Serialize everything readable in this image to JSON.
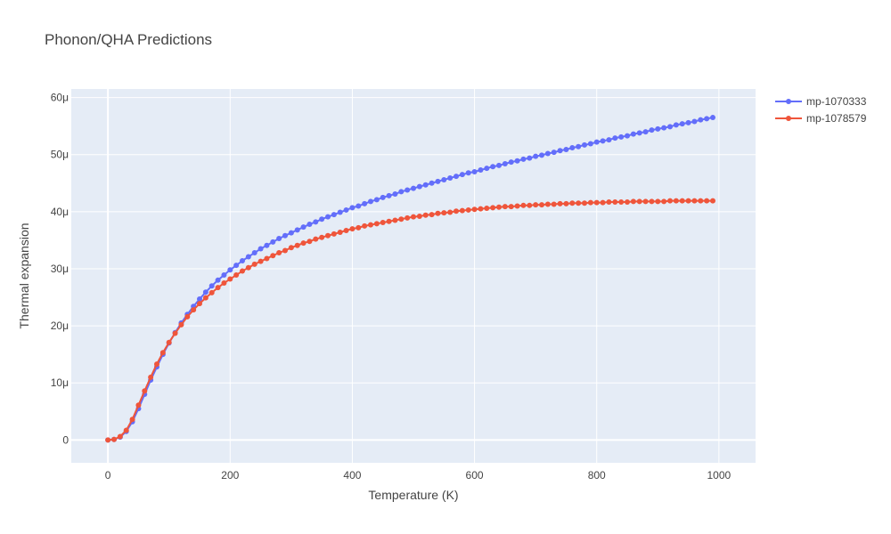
{
  "chart_data": {
    "type": "line",
    "title": "Phonon/QHA Predictions",
    "xlabel": "Temperature (K)",
    "ylabel": "Thermal expansion",
    "xlim": [
      -60,
      1060
    ],
    "ylim": [
      -4,
      61.5
    ],
    "x_ticks": [
      0,
      200,
      400,
      600,
      800,
      1000
    ],
    "x_tick_labels": [
      "0",
      "200",
      "400",
      "600",
      "800",
      "1000"
    ],
    "y_ticks": [
      0,
      10,
      20,
      30,
      40,
      50,
      60
    ],
    "y_tick_labels": [
      "0",
      "10μ",
      "20μ",
      "30μ",
      "40μ",
      "50μ",
      "60μ"
    ],
    "y_unit": "μ",
    "grid": true,
    "legend_position": "top-right",
    "x": [
      0,
      10,
      20,
      30,
      40,
      50,
      60,
      70,
      80,
      90,
      100,
      110,
      120,
      130,
      140,
      150,
      160,
      170,
      180,
      190,
      200,
      210,
      220,
      230,
      240,
      250,
      260,
      270,
      280,
      290,
      300,
      310,
      320,
      330,
      340,
      350,
      360,
      370,
      380,
      390,
      400,
      410,
      420,
      430,
      440,
      450,
      460,
      470,
      480,
      490,
      500,
      510,
      520,
      530,
      540,
      550,
      560,
      570,
      580,
      590,
      600,
      610,
      620,
      630,
      640,
      650,
      660,
      670,
      680,
      690,
      700,
      710,
      720,
      730,
      740,
      750,
      760,
      770,
      780,
      790,
      800,
      810,
      820,
      830,
      840,
      850,
      860,
      870,
      880,
      890,
      900,
      910,
      920,
      930,
      940,
      950,
      960,
      970,
      980,
      990
    ],
    "series": [
      {
        "name": "mp-1070333",
        "color": "#636efa",
        "values": [
          0,
          0.1,
          0.5,
          1.5,
          3.2,
          5.5,
          8.0,
          10.5,
          12.8,
          15.0,
          17.0,
          18.8,
          20.5,
          22.0,
          23.4,
          24.7,
          25.9,
          27.0,
          28.0,
          28.9,
          29.8,
          30.6,
          31.4,
          32.1,
          32.8,
          33.5,
          34.1,
          34.7,
          35.3,
          35.8,
          36.3,
          36.8,
          37.3,
          37.8,
          38.2,
          38.7,
          39.1,
          39.5,
          39.9,
          40.3,
          40.7,
          41.0,
          41.4,
          41.8,
          42.1,
          42.5,
          42.8,
          43.1,
          43.5,
          43.8,
          44.1,
          44.4,
          44.7,
          45.0,
          45.3,
          45.6,
          45.9,
          46.2,
          46.5,
          46.8,
          47.0,
          47.3,
          47.6,
          47.9,
          48.1,
          48.4,
          48.7,
          48.9,
          49.2,
          49.4,
          49.7,
          49.9,
          50.2,
          50.4,
          50.7,
          50.9,
          51.2,
          51.4,
          51.7,
          51.9,
          52.2,
          52.4,
          52.6,
          52.9,
          53.1,
          53.3,
          53.6,
          53.8,
          54.0,
          54.3,
          54.5,
          54.7,
          54.9,
          55.2,
          55.4,
          55.6,
          55.8,
          56.1,
          56.3,
          56.5
        ]
      },
      {
        "name": "mp-1078579",
        "color": "#ef553b",
        "values": [
          0,
          0.1,
          0.6,
          1.7,
          3.6,
          6.1,
          8.6,
          11.0,
          13.3,
          15.3,
          17.1,
          18.7,
          20.2,
          21.6,
          22.8,
          23.9,
          24.9,
          25.8,
          26.7,
          27.5,
          28.2,
          28.9,
          29.6,
          30.2,
          30.8,
          31.3,
          31.8,
          32.3,
          32.8,
          33.2,
          33.7,
          34.1,
          34.5,
          34.8,
          35.2,
          35.5,
          35.8,
          36.1,
          36.4,
          36.7,
          37.0,
          37.2,
          37.5,
          37.7,
          37.9,
          38.1,
          38.3,
          38.5,
          38.7,
          38.9,
          39.1,
          39.2,
          39.4,
          39.5,
          39.7,
          39.8,
          39.9,
          40.1,
          40.2,
          40.3,
          40.4,
          40.5,
          40.6,
          40.7,
          40.8,
          40.9,
          40.9,
          41.0,
          41.1,
          41.1,
          41.2,
          41.2,
          41.3,
          41.3,
          41.4,
          41.4,
          41.5,
          41.5,
          41.5,
          41.6,
          41.6,
          41.6,
          41.7,
          41.7,
          41.7,
          41.7,
          41.8,
          41.8,
          41.8,
          41.8,
          41.8,
          41.8,
          41.9,
          41.9,
          41.9,
          41.9,
          41.9,
          41.9,
          41.9,
          41.9
        ]
      }
    ]
  }
}
